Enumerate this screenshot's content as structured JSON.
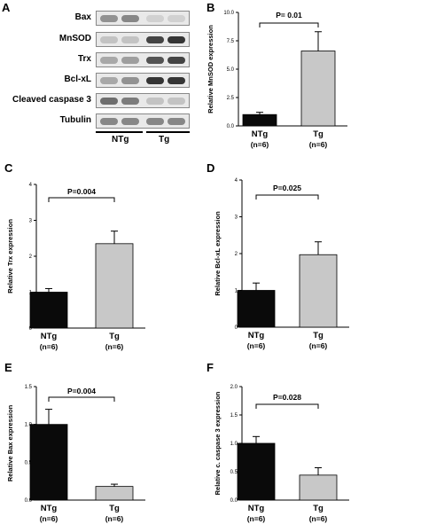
{
  "panels": {
    "A": "A",
    "B": "B",
    "C": "C",
    "D": "D",
    "E": "E",
    "F": "F"
  },
  "blot": {
    "rows": [
      {
        "label": "Bax",
        "intensity": [
          0.55,
          0.6,
          0.2,
          0.2
        ]
      },
      {
        "label": "MnSOD",
        "intensity": [
          0.3,
          0.3,
          0.85,
          0.9
        ]
      },
      {
        "label": "Trx",
        "intensity": [
          0.45,
          0.5,
          0.8,
          0.85
        ]
      },
      {
        "label": "Bcl-xL",
        "intensity": [
          0.45,
          0.55,
          0.9,
          0.9
        ]
      },
      {
        "label": "Cleaved caspase 3",
        "intensity": [
          0.7,
          0.65,
          0.3,
          0.3
        ]
      },
      {
        "label": "Tubulin",
        "intensity": [
          0.6,
          0.6,
          0.6,
          0.6
        ]
      }
    ],
    "groups": [
      "NTg",
      "Tg"
    ]
  },
  "chart_data": [
    {
      "panel": "B",
      "type": "bar",
      "categories": [
        "NTg",
        "Tg"
      ],
      "n_labels": [
        "(n=6)",
        "(n=6)"
      ],
      "values": [
        1.0,
        6.6
      ],
      "errors": [
        0.2,
        1.7
      ],
      "ylabel": "Relative MnSOD expression",
      "ylim": [
        0,
        10
      ],
      "yticks": [
        "0.0",
        "2.5",
        "5.0",
        "7.5",
        "10.0"
      ],
      "pvalue": "P= 0.01",
      "bar_colors": [
        "#0a0a0a",
        "#c8c8c8"
      ]
    },
    {
      "panel": "C",
      "type": "bar",
      "categories": [
        "NTg",
        "Tg"
      ],
      "n_labels": [
        "(n=6)",
        "(n=6)"
      ],
      "values": [
        1.0,
        2.35
      ],
      "errors": [
        0.1,
        0.35
      ],
      "ylabel": "Relative Trx expression",
      "ylim": [
        0,
        4
      ],
      "yticks": [
        "0",
        "1",
        "2",
        "3",
        "4"
      ],
      "pvalue": "P=0.004",
      "bar_colors": [
        "#0a0a0a",
        "#c8c8c8"
      ]
    },
    {
      "panel": "D",
      "type": "bar",
      "categories": [
        "NTg",
        "Tg"
      ],
      "n_labels": [
        "(n=6)",
        "(n=6)"
      ],
      "values": [
        1.0,
        1.97
      ],
      "errors": [
        0.2,
        0.35
      ],
      "ylabel": "Relative Bcl-xL expression",
      "ylim": [
        0,
        4
      ],
      "yticks": [
        "0",
        "1",
        "2",
        "3",
        "4"
      ],
      "pvalue": "P=0.025",
      "bar_colors": [
        "#0a0a0a",
        "#c8c8c8"
      ]
    },
    {
      "panel": "E",
      "type": "bar",
      "categories": [
        "NTg",
        "Tg"
      ],
      "n_labels": [
        "(n=6)",
        "(n=6)"
      ],
      "values": [
        1.0,
        0.18
      ],
      "errors": [
        0.2,
        0.03
      ],
      "ylabel": "Relative Bax expression",
      "ylim": [
        0,
        1.5
      ],
      "yticks": [
        "0.0",
        "0.5",
        "1.0",
        "1.5"
      ],
      "pvalue": "P=0.004",
      "bar_colors": [
        "#0a0a0a",
        "#c8c8c8"
      ]
    },
    {
      "panel": "F",
      "type": "bar",
      "categories": [
        "NTg",
        "Tg"
      ],
      "n_labels": [
        "(n=6)",
        "(n=6)"
      ],
      "values": [
        1.0,
        0.44
      ],
      "errors": [
        0.12,
        0.13
      ],
      "ylabel": "Relative c. caspase 3 expression",
      "ylim": [
        0,
        2.0
      ],
      "yticks": [
        "0.0",
        "0.5",
        "1.0",
        "1.5",
        "2.0"
      ],
      "pvalue": "P=0.028",
      "bar_colors": [
        "#0a0a0a",
        "#c8c8c8"
      ]
    }
  ]
}
